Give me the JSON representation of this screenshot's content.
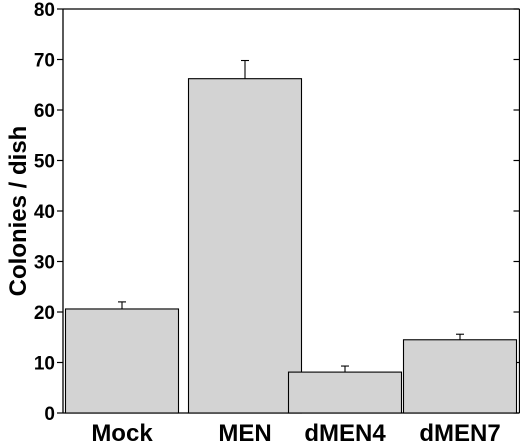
{
  "chart_data": {
    "type": "bar",
    "categories": [
      "Mock",
      "MEN",
      "dMEN4",
      "dMEN7"
    ],
    "values": [
      20.6,
      66.2,
      8.1,
      14.5
    ],
    "errors": [
      1.4,
      3.6,
      1.2,
      1.1
    ],
    "title": "",
    "xlabel": "",
    "ylabel": "Colonies / dish",
    "ylim": [
      0,
      80
    ],
    "yticks": [
      0,
      10,
      20,
      30,
      40,
      50,
      60,
      70,
      80
    ],
    "grid": false,
    "bar_color": "#d3d3d3"
  }
}
